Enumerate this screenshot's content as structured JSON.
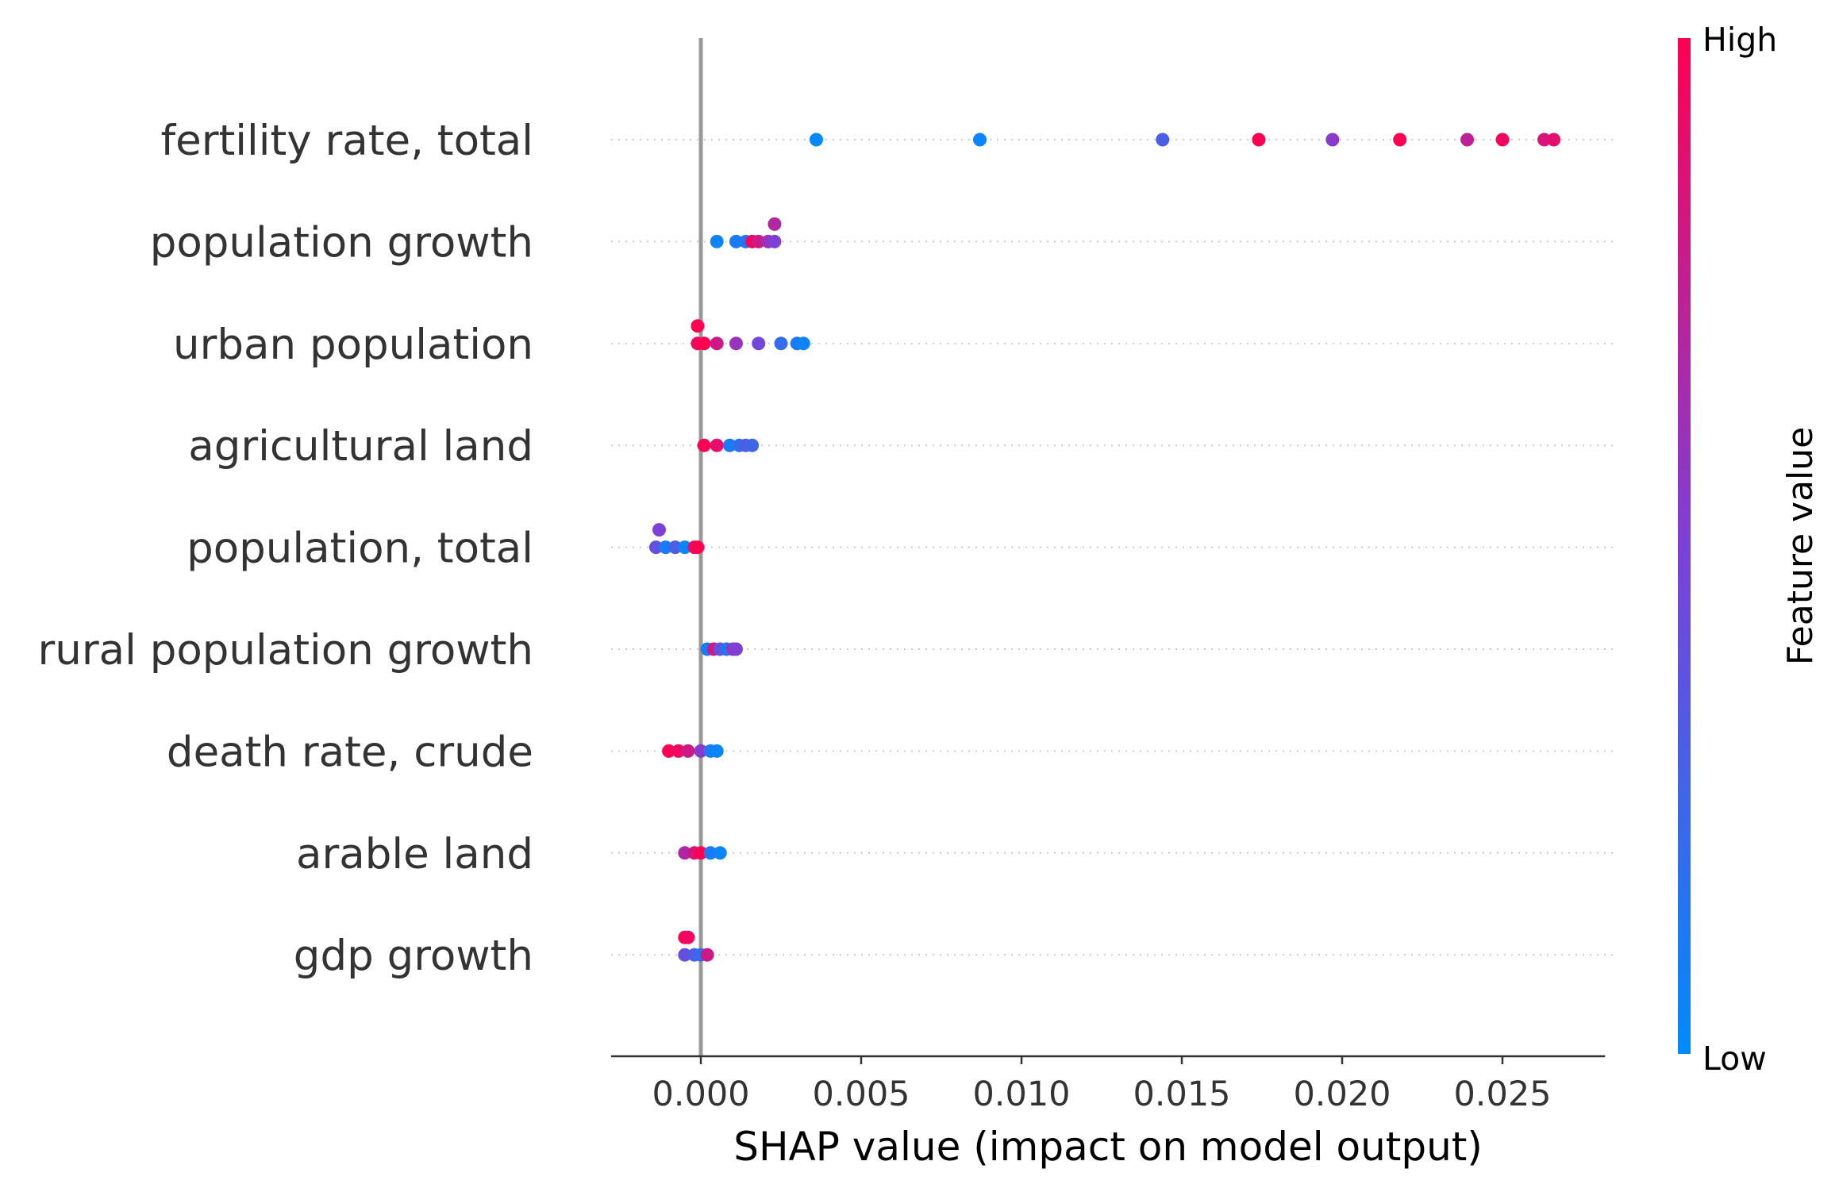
{
  "chart_data": {
    "type": "scatter",
    "subtype": "shap-beeswarm",
    "xlabel": "SHAP value (impact on model output)",
    "xlim": [
      -0.0028,
      0.0282
    ],
    "xticks": [
      0.0,
      0.005,
      0.01,
      0.015,
      0.02,
      0.025
    ],
    "xtick_labels": [
      "0.000",
      "0.005",
      "0.010",
      "0.015",
      "0.020",
      "0.025"
    ],
    "zero_line": 0,
    "grid": "horizontal-dotted",
    "colorbar": {
      "title": "Feature value",
      "high_label": "High",
      "low_label": "Low",
      "low_color": "#008bfb",
      "mid_color": "#7d40d7",
      "high_color": "#ff0052",
      "placement": "right"
    },
    "features": [
      {
        "name": "fertility rate, total",
        "points": [
          {
            "x": 0.0036,
            "v": 0.0,
            "j": 0
          },
          {
            "x": 0.0087,
            "v": 0.05,
            "j": 0
          },
          {
            "x": 0.0144,
            "v": 0.3,
            "j": 0
          },
          {
            "x": 0.0174,
            "v": 1.0,
            "j": 0
          },
          {
            "x": 0.0197,
            "v": 0.55,
            "j": 0
          },
          {
            "x": 0.0218,
            "v": 1.0,
            "j": 0
          },
          {
            "x": 0.0239,
            "v": 0.75,
            "j": 0
          },
          {
            "x": 0.025,
            "v": 0.95,
            "j": 0
          },
          {
            "x": 0.0263,
            "v": 0.85,
            "j": 0
          },
          {
            "x": 0.0266,
            "v": 0.9,
            "j": 0
          }
        ]
      },
      {
        "name": "population growth",
        "points": [
          {
            "x": 0.0023,
            "v": 0.7,
            "j": -1
          },
          {
            "x": 0.0005,
            "v": 0.05,
            "j": 0
          },
          {
            "x": 0.0011,
            "v": 0.1,
            "j": 0
          },
          {
            "x": 0.0014,
            "v": 0.15,
            "j": 0
          },
          {
            "x": 0.0016,
            "v": 0.95,
            "j": 0
          },
          {
            "x": 0.0018,
            "v": 0.8,
            "j": 0
          },
          {
            "x": 0.0021,
            "v": 0.6,
            "j": 0
          },
          {
            "x": 0.0023,
            "v": 0.5,
            "j": 0
          }
        ]
      },
      {
        "name": "urban population",
        "points": [
          {
            "x": -0.0001,
            "v": 1.0,
            "j": -1
          },
          {
            "x": -0.0001,
            "v": 0.95,
            "j": 0
          },
          {
            "x": 0.0001,
            "v": 1.0,
            "j": 0
          },
          {
            "x": 0.0005,
            "v": 0.8,
            "j": 0
          },
          {
            "x": 0.0011,
            "v": 0.6,
            "j": 0
          },
          {
            "x": 0.0018,
            "v": 0.45,
            "j": 0
          },
          {
            "x": 0.0025,
            "v": 0.2,
            "j": 0
          },
          {
            "x": 0.003,
            "v": 0.1,
            "j": 0
          },
          {
            "x": 0.0032,
            "v": 0.05,
            "j": 0
          }
        ]
      },
      {
        "name": "agricultural land",
        "points": [
          {
            "x": 0.0001,
            "v": 1.0,
            "j": 0
          },
          {
            "x": 0.0005,
            "v": 0.9,
            "j": 0
          },
          {
            "x": 0.0009,
            "v": 0.1,
            "j": 0
          },
          {
            "x": 0.0012,
            "v": 0.2,
            "j": 0
          },
          {
            "x": 0.0014,
            "v": 0.3,
            "j": 0
          },
          {
            "x": 0.0016,
            "v": 0.25,
            "j": 0
          }
        ]
      },
      {
        "name": "population, total",
        "points": [
          {
            "x": -0.0013,
            "v": 0.5,
            "j": -1
          },
          {
            "x": -0.0014,
            "v": 0.4,
            "j": 0
          },
          {
            "x": -0.0011,
            "v": 0.1,
            "j": 0
          },
          {
            "x": -0.0008,
            "v": 0.3,
            "j": 0
          },
          {
            "x": -0.0005,
            "v": 0.05,
            "j": 0
          },
          {
            "x": -0.0002,
            "v": 0.95,
            "j": 0
          },
          {
            "x": -0.0001,
            "v": 1.0,
            "j": 0
          }
        ]
      },
      {
        "name": "rural population growth",
        "points": [
          {
            "x": 0.0002,
            "v": 0.1,
            "j": 0
          },
          {
            "x": 0.0004,
            "v": 0.8,
            "j": 0
          },
          {
            "x": 0.0006,
            "v": 0.4,
            "j": 0
          },
          {
            "x": 0.0008,
            "v": 0.15,
            "j": 0
          },
          {
            "x": 0.001,
            "v": 0.6,
            "j": 0
          },
          {
            "x": 0.0011,
            "v": 0.5,
            "j": 0
          }
        ]
      },
      {
        "name": "death rate, crude",
        "points": [
          {
            "x": -0.001,
            "v": 1.0,
            "j": 0
          },
          {
            "x": -0.0007,
            "v": 0.95,
            "j": 0
          },
          {
            "x": -0.0004,
            "v": 0.8,
            "j": 0
          },
          {
            "x": 0.0,
            "v": 0.55,
            "j": 0
          },
          {
            "x": 0.0003,
            "v": 0.1,
            "j": 0
          },
          {
            "x": 0.0005,
            "v": 0.05,
            "j": 0
          }
        ]
      },
      {
        "name": "arable land",
        "points": [
          {
            "x": -0.0005,
            "v": 0.7,
            "j": 0
          },
          {
            "x": -0.0002,
            "v": 0.85,
            "j": 0
          },
          {
            "x": 0.0,
            "v": 1.0,
            "j": 0
          },
          {
            "x": 0.0003,
            "v": 0.1,
            "j": 0
          },
          {
            "x": 0.0006,
            "v": 0.05,
            "j": 0
          }
        ]
      },
      {
        "name": "gdp growth",
        "points": [
          {
            "x": -0.0005,
            "v": 1.0,
            "j": -1
          },
          {
            "x": -0.0004,
            "v": 0.95,
            "j": -1
          },
          {
            "x": -0.0005,
            "v": 0.4,
            "j": 0
          },
          {
            "x": -0.0002,
            "v": 0.3,
            "j": 0
          },
          {
            "x": 0.0,
            "v": 0.2,
            "j": 0
          },
          {
            "x": 0.0002,
            "v": 0.8,
            "j": 0
          }
        ]
      }
    ]
  }
}
